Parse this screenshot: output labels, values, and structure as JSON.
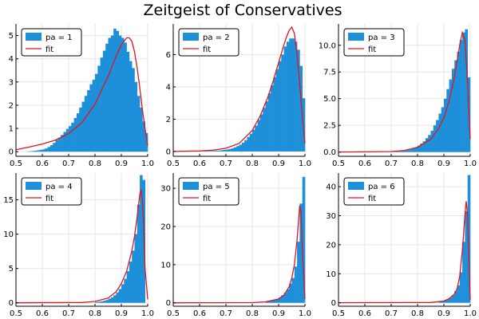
{
  "title": "Zeitgeist of Conservatives",
  "colors": {
    "bar": "#1e90d9",
    "fit": "#e0141f",
    "grid": "#e6e6e6",
    "axis": "#000000"
  },
  "chart_data": [
    {
      "type": "bar",
      "legend": [
        "pa = 1",
        "fit"
      ],
      "xlim": [
        0.5,
        1.0
      ],
      "ylim": [
        -0.2,
        5.5
      ],
      "xticks": [
        "0.5",
        "0.6",
        "0.7",
        "0.8",
        "0.9",
        "1.0"
      ],
      "xtick_values": [
        0.5,
        0.6,
        0.7,
        0.8,
        0.9,
        1.0
      ],
      "yticks": [
        "0",
        "1",
        "2",
        "3",
        "4",
        "5"
      ],
      "ytick_values": [
        0,
        1,
        2,
        3,
        4,
        5
      ],
      "hist_x": [
        0.5,
        0.51,
        0.52,
        0.53,
        0.54,
        0.55,
        0.56,
        0.57,
        0.58,
        0.59,
        0.6,
        0.61,
        0.62,
        0.63,
        0.64,
        0.65,
        0.66,
        0.67,
        0.68,
        0.69,
        0.7,
        0.71,
        0.72,
        0.73,
        0.74,
        0.75,
        0.76,
        0.77,
        0.78,
        0.79,
        0.8,
        0.81,
        0.82,
        0.83,
        0.84,
        0.85,
        0.86,
        0.87,
        0.88,
        0.89,
        0.9,
        0.91,
        0.92,
        0.93,
        0.94,
        0.95,
        0.96,
        0.97,
        0.98,
        0.99
      ],
      "hist_y": [
        0.0,
        0.0,
        0.0,
        0.0,
        0.01,
        0.02,
        0.03,
        0.04,
        0.06,
        0.08,
        0.1,
        0.14,
        0.2,
        0.28,
        0.38,
        0.5,
        0.6,
        0.72,
        0.85,
        0.98,
        1.1,
        1.25,
        1.45,
        1.65,
        1.9,
        2.15,
        2.4,
        2.65,
        2.9,
        3.1,
        3.35,
        3.7,
        4.05,
        4.35,
        4.65,
        4.9,
        5.0,
        5.3,
        5.2,
        5.0,
        4.9,
        4.7,
        4.3,
        3.9,
        3.6,
        3.0,
        2.4,
        1.9,
        1.3,
        0.8
      ],
      "fit_x": [
        0.5,
        0.55,
        0.6,
        0.65,
        0.7,
        0.75,
        0.8,
        0.85,
        0.88,
        0.9,
        0.92,
        0.93,
        0.94,
        0.95,
        0.96,
        0.97,
        0.98,
        0.99,
        1.0
      ],
      "fit_y": [
        0.08,
        0.2,
        0.33,
        0.5,
        0.78,
        1.25,
        2.05,
        3.25,
        4.1,
        4.6,
        4.9,
        4.9,
        4.75,
        4.3,
        3.6,
        2.75,
        1.8,
        1.0,
        0.25
      ]
    },
    {
      "type": "bar",
      "legend": [
        "pa = 2",
        "fit"
      ],
      "xlim": [
        0.5,
        1.0
      ],
      "ylim": [
        -0.3,
        7.9
      ],
      "xticks": [
        "0.5",
        "0.6",
        "0.7",
        "0.8",
        "0.9",
        "1.0"
      ],
      "xtick_values": [
        0.5,
        0.6,
        0.7,
        0.8,
        0.9,
        1.0
      ],
      "yticks": [
        "0",
        "2",
        "4",
        "6"
      ],
      "ytick_values": [
        0,
        2,
        4,
        6
      ],
      "hist_x": [
        0.6,
        0.61,
        0.62,
        0.63,
        0.64,
        0.65,
        0.66,
        0.67,
        0.68,
        0.69,
        0.7,
        0.71,
        0.72,
        0.73,
        0.74,
        0.75,
        0.76,
        0.77,
        0.78,
        0.79,
        0.8,
        0.81,
        0.82,
        0.83,
        0.84,
        0.85,
        0.86,
        0.87,
        0.88,
        0.89,
        0.9,
        0.91,
        0.92,
        0.93,
        0.94,
        0.95,
        0.96,
        0.97,
        0.98,
        0.99
      ],
      "hist_y": [
        0.01,
        0.01,
        0.02,
        0.02,
        0.03,
        0.04,
        0.05,
        0.06,
        0.08,
        0.1,
        0.12,
        0.15,
        0.2,
        0.26,
        0.33,
        0.42,
        0.55,
        0.7,
        0.9,
        1.1,
        1.35,
        1.6,
        1.95,
        2.3,
        2.7,
        3.1,
        3.6,
        4.1,
        4.6,
        5.1,
        5.6,
        6.0,
        6.5,
        6.8,
        7.0,
        7.0,
        6.8,
        6.3,
        5.3,
        3.3
      ],
      "fit_x": [
        0.5,
        0.6,
        0.65,
        0.7,
        0.75,
        0.8,
        0.83,
        0.86,
        0.88,
        0.9,
        0.92,
        0.93,
        0.94,
        0.95,
        0.96,
        0.97,
        0.98,
        0.99,
        1.0
      ],
      "fit_y": [
        0.0,
        0.03,
        0.08,
        0.2,
        0.5,
        1.3,
        2.2,
        3.4,
        4.4,
        5.5,
        6.6,
        7.1,
        7.5,
        7.7,
        7.3,
        6.0,
        4.2,
        2.2,
        0.5
      ]
    },
    {
      "type": "bar",
      "legend": [
        "pa = 3",
        "fit"
      ],
      "xlim": [
        0.5,
        1.0
      ],
      "ylim": [
        -0.4,
        12.0
      ],
      "xticks": [
        "0.5",
        "0.6",
        "0.7",
        "0.8",
        "0.9",
        "1.0"
      ],
      "xtick_values": [
        0.5,
        0.6,
        0.7,
        0.8,
        0.9,
        1.0
      ],
      "yticks": [
        "0.0",
        "2.5",
        "5.0",
        "7.5",
        "10.0"
      ],
      "ytick_values": [
        0,
        2.5,
        5,
        7.5,
        10
      ],
      "hist_x": [
        0.7,
        0.71,
        0.72,
        0.73,
        0.74,
        0.75,
        0.76,
        0.77,
        0.78,
        0.79,
        0.8,
        0.81,
        0.82,
        0.83,
        0.84,
        0.85,
        0.86,
        0.87,
        0.88,
        0.89,
        0.9,
        0.91,
        0.92,
        0.93,
        0.94,
        0.95,
        0.96,
        0.97,
        0.98,
        0.99
      ],
      "hist_y": [
        0.02,
        0.03,
        0.05,
        0.07,
        0.1,
        0.14,
        0.2,
        0.27,
        0.35,
        0.45,
        0.6,
        0.8,
        1.0,
        1.3,
        1.6,
        2.0,
        2.5,
        3.0,
        3.6,
        4.2,
        5.0,
        5.9,
        6.8,
        7.8,
        8.6,
        9.4,
        10.5,
        11.2,
        11.5,
        7.0
      ],
      "fit_x": [
        0.5,
        0.7,
        0.75,
        0.8,
        0.85,
        0.88,
        0.9,
        0.92,
        0.94,
        0.95,
        0.96,
        0.97,
        0.98,
        0.99,
        1.0
      ],
      "fit_y": [
        0.0,
        0.05,
        0.15,
        0.45,
        1.2,
        2.2,
        3.2,
        4.8,
        7.0,
        8.5,
        10.0,
        11.2,
        10.5,
        6.5,
        1.2
      ]
    },
    {
      "type": "bar",
      "legend": [
        "pa = 4",
        "fit"
      ],
      "xlim": [
        0.5,
        1.0
      ],
      "ylim": [
        -0.5,
        18.9
      ],
      "xticks": [
        "0.5",
        "0.6",
        "0.7",
        "0.8",
        "0.9",
        "1.0"
      ],
      "xtick_values": [
        0.5,
        0.6,
        0.7,
        0.8,
        0.9,
        1.0
      ],
      "yticks": [
        "0",
        "5",
        "10",
        "15"
      ],
      "ytick_values": [
        0,
        5,
        10,
        15
      ],
      "hist_x": [
        0.8,
        0.81,
        0.82,
        0.83,
        0.84,
        0.85,
        0.86,
        0.87,
        0.88,
        0.89,
        0.9,
        0.91,
        0.92,
        0.93,
        0.94,
        0.95,
        0.96,
        0.97,
        0.98,
        0.99
      ],
      "hist_y": [
        0.1,
        0.15,
        0.2,
        0.3,
        0.4,
        0.6,
        0.8,
        1.1,
        1.5,
        2.0,
        2.7,
        3.5,
        4.6,
        6.0,
        7.6,
        10.0,
        14.3,
        18.6,
        17.9,
        0.0
      ],
      "fit_x": [
        0.5,
        0.75,
        0.8,
        0.85,
        0.88,
        0.9,
        0.92,
        0.94,
        0.95,
        0.96,
        0.97,
        0.975,
        0.98,
        0.985,
        0.99,
        1.0
      ],
      "fit_y": [
        0.0,
        0.05,
        0.2,
        0.7,
        1.6,
        2.8,
        4.6,
        7.6,
        9.7,
        12.5,
        15.8,
        16.5,
        15.0,
        11.0,
        5.0,
        0.5
      ]
    },
    {
      "type": "bar",
      "legend": [
        "pa = 5",
        "fit"
      ],
      "xlim": [
        0.5,
        1.0
      ],
      "ylim": [
        -0.9,
        34.0
      ],
      "xticks": [
        "0.5",
        "0.6",
        "0.7",
        "0.8",
        "0.9",
        "1.0"
      ],
      "xtick_values": [
        0.5,
        0.6,
        0.7,
        0.8,
        0.9,
        1.0
      ],
      "yticks": [
        "0",
        "10",
        "20",
        "30"
      ],
      "ytick_values": [
        0,
        10,
        20,
        30
      ],
      "hist_x": [
        0.85,
        0.86,
        0.87,
        0.88,
        0.89,
        0.9,
        0.91,
        0.92,
        0.93,
        0.94,
        0.95,
        0.96,
        0.97,
        0.98,
        0.99
      ],
      "hist_y": [
        0.3,
        0.4,
        0.6,
        0.8,
        1.0,
        1.4,
        2.0,
        2.6,
        3.5,
        5.0,
        6.5,
        9.5,
        16.0,
        26.0,
        33.0
      ],
      "fit_x": [
        0.5,
        0.8,
        0.85,
        0.9,
        0.92,
        0.94,
        0.95,
        0.96,
        0.97,
        0.975,
        0.98,
        0.985,
        0.99,
        1.0
      ],
      "fit_y": [
        0.0,
        0.05,
        0.25,
        1.0,
        2.0,
        4.2,
        6.5,
        10.0,
        16.5,
        21.0,
        25.5,
        24.0,
        14.0,
        1.0
      ]
    },
    {
      "type": "bar",
      "legend": [
        "pa = 6",
        "fit"
      ],
      "xlim": [
        0.5,
        1.0
      ],
      "ylim": [
        -1.2,
        44.7
      ],
      "xticks": [
        "0.5",
        "0.6",
        "0.7",
        "0.8",
        "0.9",
        "1.0"
      ],
      "xtick_values": [
        0.5,
        0.6,
        0.7,
        0.8,
        0.9,
        1.0
      ],
      "yticks": [
        "0",
        "10",
        "20",
        "30",
        "40"
      ],
      "ytick_values": [
        0,
        10,
        20,
        30,
        40
      ],
      "hist_x": [
        0.88,
        0.89,
        0.9,
        0.91,
        0.92,
        0.93,
        0.94,
        0.95,
        0.96,
        0.97,
        0.98,
        0.99
      ],
      "hist_y": [
        0.3,
        0.5,
        0.8,
        1.2,
        1.8,
        2.6,
        4.0,
        6.0,
        10.5,
        21.0,
        31.5,
        44.0
      ],
      "fit_x": [
        0.5,
        0.85,
        0.9,
        0.92,
        0.94,
        0.95,
        0.96,
        0.97,
        0.975,
        0.98,
        0.985,
        0.99,
        0.995,
        1.0
      ],
      "fit_y": [
        0.0,
        0.1,
        0.6,
        1.4,
        3.0,
        4.8,
        9.0,
        18.0,
        24.0,
        30.5,
        35.0,
        30.0,
        15.0,
        1.0
      ]
    }
  ]
}
